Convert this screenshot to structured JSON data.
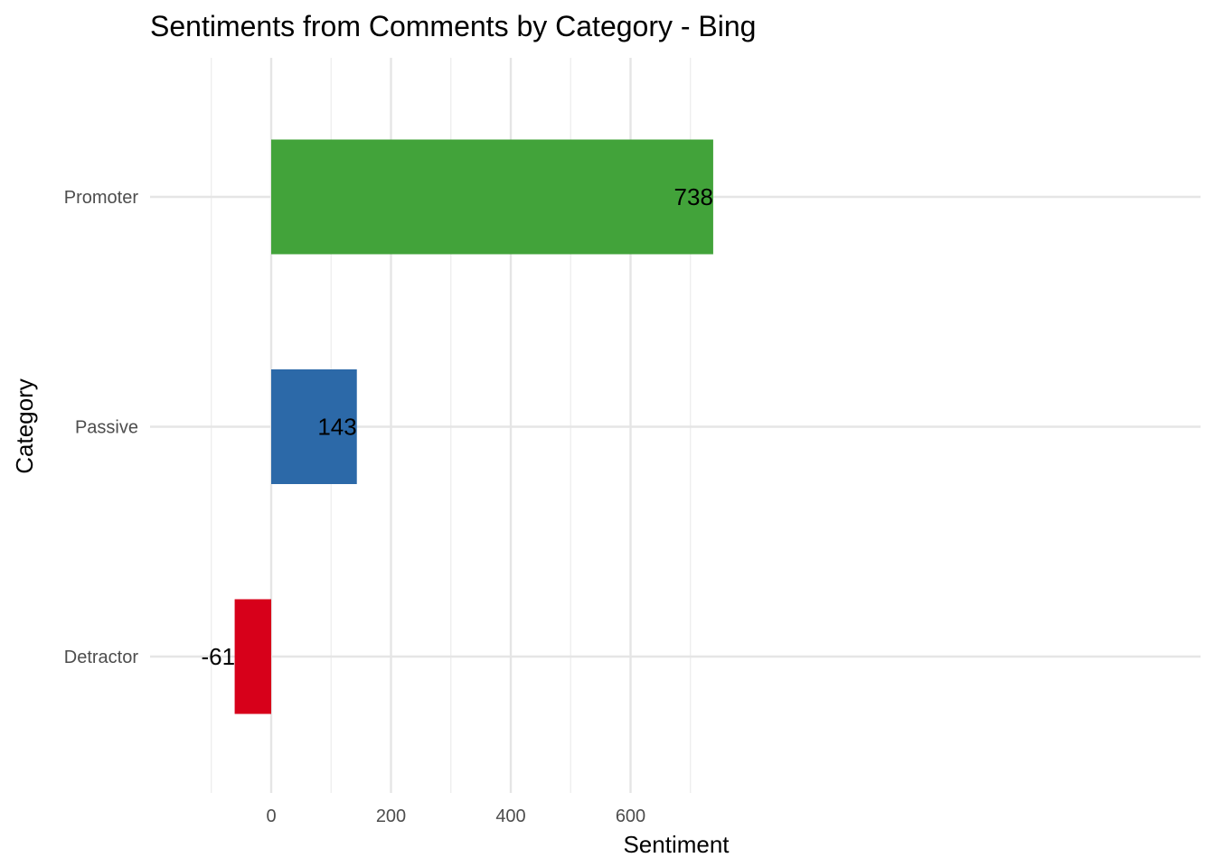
{
  "chart_data": {
    "type": "bar",
    "orientation": "horizontal",
    "title": "Sentiments from Comments by Category - Bing",
    "xlabel": "Sentiment",
    "ylabel": "Category",
    "categories": [
      "Detractor",
      "Passive",
      "Promoter"
    ],
    "values": [
      -61,
      143,
      738
    ],
    "data_labels": [
      "-61",
      "143",
      "738"
    ],
    "colors": [
      "#d7001a",
      "#2c69a8",
      "#42a33a"
    ],
    "x_ticks": [
      0,
      200,
      400,
      600
    ],
    "x_tick_labels": [
      "0",
      "200",
      "400",
      "600"
    ],
    "xlim": [
      -100,
      775
    ],
    "grid": true,
    "legend": "none"
  }
}
